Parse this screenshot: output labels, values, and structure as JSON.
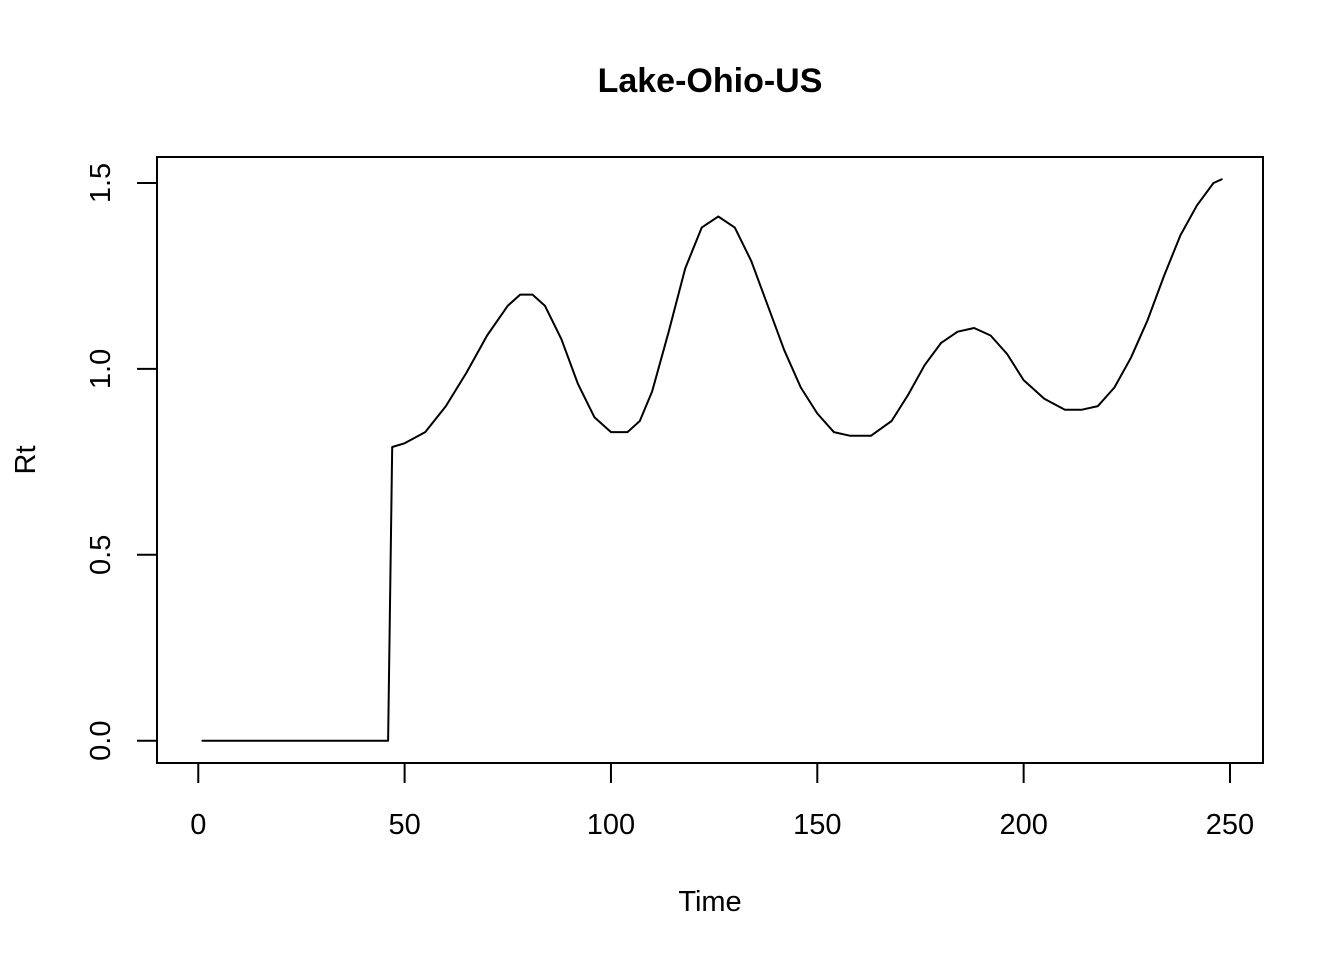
{
  "chart_data": {
    "type": "line",
    "title": "Lake-Ohio-US",
    "xlabel": "Time",
    "ylabel": "Rt",
    "xlim": [
      -10,
      258
    ],
    "ylim": [
      -0.06,
      1.57
    ],
    "x_ticks": [
      0,
      50,
      100,
      150,
      200,
      250
    ],
    "y_ticks": [
      0.0,
      0.5,
      1.0,
      1.5
    ],
    "x_tick_labels": [
      "0",
      "50",
      "100",
      "150",
      "200",
      "250"
    ],
    "y_tick_labels": [
      "0.0",
      "0.5",
      "1.0",
      "1.5"
    ],
    "grid": false,
    "line_color": "#000000",
    "series": [
      {
        "x": [
          1,
          10,
          20,
          30,
          40,
          46,
          47,
          50,
          55,
          60,
          65,
          70,
          75,
          78,
          81,
          84,
          88,
          92,
          96,
          100,
          104,
          107,
          110,
          114,
          118,
          122,
          126,
          130,
          134,
          138,
          142,
          146,
          150,
          154,
          158,
          163,
          168,
          172,
          176,
          180,
          184,
          188,
          192,
          196,
          200,
          205,
          210,
          214,
          218,
          222,
          226,
          230,
          234,
          238,
          242,
          246,
          248
        ],
        "y": [
          0.0,
          0.0,
          0.0,
          0.0,
          0.0,
          0.0,
          0.79,
          0.8,
          0.83,
          0.9,
          0.99,
          1.09,
          1.17,
          1.2,
          1.2,
          1.17,
          1.08,
          0.96,
          0.87,
          0.83,
          0.83,
          0.86,
          0.94,
          1.1,
          1.27,
          1.38,
          1.41,
          1.38,
          1.29,
          1.17,
          1.05,
          0.95,
          0.88,
          0.83,
          0.82,
          0.82,
          0.86,
          0.93,
          1.01,
          1.07,
          1.1,
          1.11,
          1.09,
          1.04,
          0.97,
          0.92,
          0.89,
          0.89,
          0.9,
          0.95,
          1.03,
          1.13,
          1.25,
          1.36,
          1.44,
          1.5,
          1.51
        ]
      }
    ]
  }
}
